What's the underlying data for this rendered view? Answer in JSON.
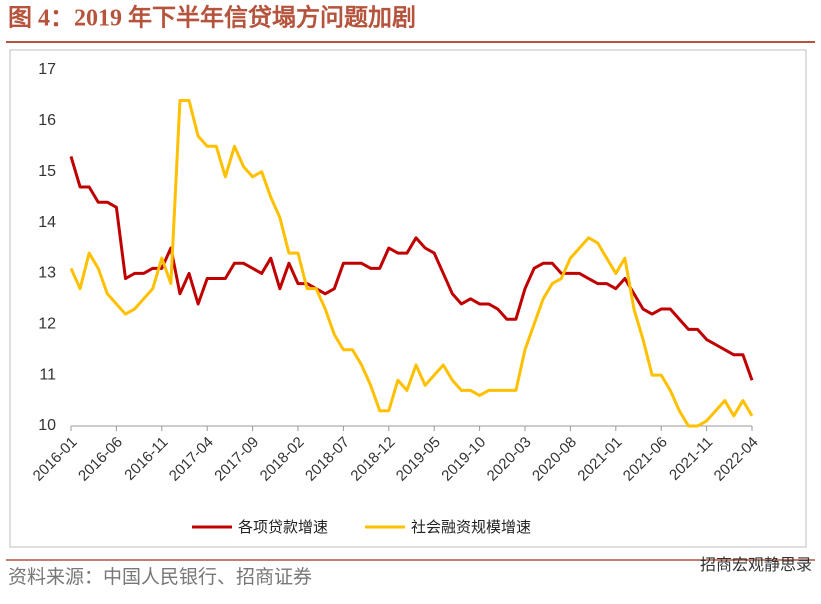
{
  "chart_data": {
    "type": "line",
    "title": "图 4：2019 年下半年信贷塌方问题加剧",
    "source": "资料来源：中国人民银行、招商证券",
    "watermark": "招商宏观静思录",
    "categories": [
      "2016-01",
      null,
      null,
      null,
      null,
      "2016-06",
      null,
      null,
      null,
      null,
      "2016-11",
      null,
      null,
      null,
      null,
      "2017-04",
      null,
      null,
      null,
      null,
      "2017-09",
      null,
      null,
      null,
      null,
      "2018-02",
      null,
      null,
      null,
      null,
      "2018-07",
      null,
      null,
      null,
      null,
      "2018-12",
      null,
      null,
      null,
      null,
      "2019-05",
      null,
      null,
      null,
      null,
      "2019-10",
      null,
      null,
      null,
      null,
      "2020-03",
      null,
      null,
      null,
      null,
      "2020-08",
      null,
      null,
      null,
      null,
      "2021-01",
      null,
      null,
      null,
      null,
      "2021-06",
      null,
      null,
      null,
      null,
      "2021-11",
      null,
      null,
      null,
      null,
      "2022-04"
    ],
    "series": [
      {
        "name": "各项贷款增速",
        "color": "#c00000",
        "values": [
          15.3,
          14.7,
          14.7,
          14.4,
          14.4,
          14.3,
          12.9,
          13.0,
          13.0,
          13.1,
          13.1,
          13.5,
          12.6,
          13.0,
          12.4,
          12.9,
          12.9,
          12.9,
          13.2,
          13.2,
          13.1,
          13.0,
          13.3,
          12.7,
          13.2,
          12.8,
          12.8,
          12.7,
          12.6,
          12.7,
          13.2,
          13.2,
          13.2,
          13.1,
          13.1,
          13.5,
          13.4,
          13.4,
          13.7,
          13.5,
          13.4,
          13.0,
          12.6,
          12.4,
          12.5,
          12.4,
          12.4,
          12.3,
          12.1,
          12.1,
          12.7,
          13.1,
          13.2,
          13.2,
          13.0,
          13.0,
          13.0,
          12.9,
          12.8,
          12.8,
          12.7,
          12.9,
          12.6,
          12.3,
          12.2,
          12.3,
          12.3,
          12.1,
          11.9,
          11.9,
          11.7,
          11.6,
          11.5,
          11.4,
          11.4,
          10.9
        ]
      },
      {
        "name": "社会融资规模增速",
        "color": "#ffc000",
        "values": [
          13.1,
          12.7,
          13.4,
          13.1,
          12.6,
          12.4,
          12.2,
          12.3,
          12.5,
          12.7,
          13.3,
          12.8,
          16.4,
          16.4,
          15.7,
          15.5,
          15.5,
          14.9,
          15.5,
          15.1,
          14.9,
          15.0,
          14.5,
          14.1,
          13.4,
          13.4,
          12.7,
          12.7,
          12.3,
          11.8,
          11.5,
          11.5,
          11.2,
          10.8,
          10.3,
          10.3,
          10.9,
          10.7,
          11.2,
          10.8,
          11.0,
          11.2,
          10.9,
          10.7,
          10.7,
          10.6,
          10.7,
          10.7,
          10.7,
          10.7,
          11.5,
          12.0,
          12.5,
          12.8,
          12.9,
          13.3,
          13.5,
          13.7,
          13.6,
          13.3,
          13.0,
          13.3,
          12.3,
          11.7,
          11.0,
          11.0,
          10.7,
          10.3,
          10.0,
          10.0,
          10.1,
          10.3,
          10.5,
          10.2,
          10.5,
          10.2
        ]
      }
    ],
    "ylim": [
      10,
      17
    ],
    "yticks": [
      10,
      11,
      12,
      13,
      14,
      15,
      16,
      17
    ]
  }
}
